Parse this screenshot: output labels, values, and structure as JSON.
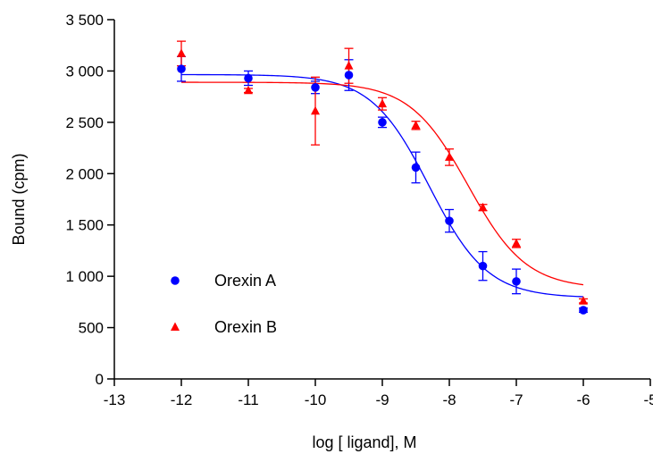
{
  "chart_data": {
    "type": "scatter",
    "xlabel": "log [ ligand], M",
    "ylabel": "Bound (cpm)",
    "xlim": [
      -13,
      -5
    ],
    "ylim": [
      0,
      3500
    ],
    "xticks": [
      -13,
      -12,
      -11,
      -10,
      -9,
      -8,
      -7,
      -6,
      -5
    ],
    "xtick_labels": [
      "-13",
      "-12",
      "-11",
      "-10",
      "-9",
      "-8",
      "-7",
      "-6",
      "-5"
    ],
    "yticks": [
      0,
      500,
      1000,
      1500,
      2000,
      2500,
      3000,
      3500
    ],
    "ytick_labels": [
      "0",
      "500",
      "1 000",
      "1 500",
      "2 000",
      "2 500",
      "3 000",
      "3 500"
    ],
    "grid": false,
    "legend_position": "lower-left",
    "series": [
      {
        "name": "Orexin A",
        "color": "#0000ff",
        "marker": "circle",
        "fit": {
          "top": 2965,
          "bottom": 790,
          "log_ic50": -8.3,
          "hill_slope": -1.0
        },
        "points": [
          {
            "x": -12,
            "y": 3020,
            "err": 120
          },
          {
            "x": -11,
            "y": 2930,
            "err": 70
          },
          {
            "x": -10,
            "y": 2840,
            "err": 60
          },
          {
            "x": -9.5,
            "y": 2960,
            "err": 150
          },
          {
            "x": -9,
            "y": 2500,
            "err": 50
          },
          {
            "x": -8.5,
            "y": 2060,
            "err": 150
          },
          {
            "x": -8,
            "y": 1540,
            "err": 110
          },
          {
            "x": -7.5,
            "y": 1100,
            "err": 140
          },
          {
            "x": -7,
            "y": 950,
            "err": 120
          },
          {
            "x": -6,
            "y": 670,
            "err": 20
          }
        ]
      },
      {
        "name": "Orexin B",
        "color": "#ff0000",
        "marker": "triangle",
        "fit": {
          "top": 2890,
          "bottom": 880,
          "log_ic50": -7.72,
          "hill_slope": -1.0
        },
        "points": [
          {
            "x": -12,
            "y": 3170,
            "err": 120
          },
          {
            "x": -11,
            "y": 2810,
            "err": 20
          },
          {
            "x": -10,
            "y": 2610,
            "err": 330
          },
          {
            "x": -9.5,
            "y": 3050,
            "err": 170
          },
          {
            "x": -9,
            "y": 2680,
            "err": 60
          },
          {
            "x": -8.5,
            "y": 2470,
            "err": 40
          },
          {
            "x": -8,
            "y": 2160,
            "err": 80
          },
          {
            "x": -7.5,
            "y": 1670,
            "err": 30
          },
          {
            "x": -7,
            "y": 1320,
            "err": 40
          },
          {
            "x": -6,
            "y": 760,
            "err": 20
          }
        ]
      }
    ]
  }
}
